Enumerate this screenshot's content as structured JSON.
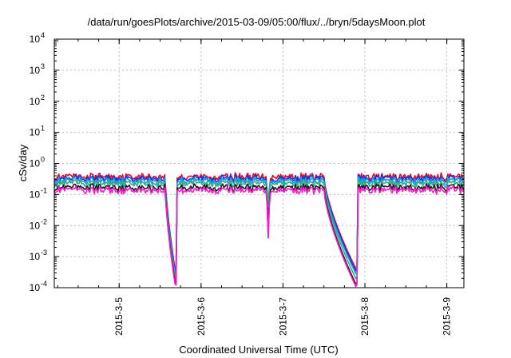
{
  "chart_data": {
    "type": "line",
    "title": "/data/run/goesPlots/archive/2015-03-09/05:00/flux/../bryn/5daysMoon.plot",
    "xlabel": "Coordinated Universal Time (UTC)",
    "ylabel": "cSv/day",
    "yscale": "log",
    "ylim": [
      0.0001,
      10000
    ],
    "yticks": [
      {
        "base": "10",
        "exp": "-4",
        "value": 0.0001
      },
      {
        "base": "10",
        "exp": "-3",
        "value": 0.001
      },
      {
        "base": "10",
        "exp": "-2",
        "value": 0.01
      },
      {
        "base": "10",
        "exp": "-1",
        "value": 0.1
      },
      {
        "base": "10",
        "exp": "0",
        "value": 1
      },
      {
        "base": "10",
        "exp": "1",
        "value": 10
      },
      {
        "base": "10",
        "exp": "2",
        "value": 100
      },
      {
        "base": "10",
        "exp": "3",
        "value": 1000
      },
      {
        "base": "10",
        "exp": "4",
        "value": 10000
      }
    ],
    "xlim": [
      "2015-03-04T05:00",
      "2015-03-09T05:00"
    ],
    "xticks": [
      {
        "label": "2015-3-5",
        "value": "2015-03-05T00:00"
      },
      {
        "label": "2015-3-6",
        "value": "2015-03-06T00:00"
      },
      {
        "label": "2015-3-7",
        "value": "2015-03-07T00:00"
      },
      {
        "label": "2015-3-8",
        "value": "2015-03-08T00:00"
      },
      {
        "label": "2015-3-9",
        "value": "2015-03-09T00:00"
      }
    ],
    "grid": true,
    "series": [
      {
        "color": "#e0102a",
        "baseline": 0.38,
        "min_values": [
          0.00032,
          0.00038
        ]
      },
      {
        "color": "#1e2fd6",
        "baseline": 0.33,
        "min_values": [
          0.00027,
          0.00032
        ]
      },
      {
        "color": "#2a95e8",
        "baseline": 0.28,
        "min_values": [
          0.00022,
          0.00026
        ]
      },
      {
        "color": "#22b48f",
        "baseline": 0.23,
        "min_values": [
          0.00016,
          0.00018
        ]
      },
      {
        "color": "#1a1a1a",
        "baseline": 0.17,
        "min_values": [
          0.00012,
          0.00012
        ]
      },
      {
        "color": "#ff1fcc",
        "baseline": 0.14,
        "min_values": [
          0.0001,
          0.0001
        ]
      }
    ],
    "events": [
      {
        "start": "2015-03-05T13:30",
        "min": "2015-03-05T16:30",
        "end": "2015-03-05T16:45",
        "type": "decay"
      },
      {
        "start": "2015-03-06T19:00",
        "min": "2015-03-06T19:40",
        "end": "2015-03-06T20:00",
        "type": "spike"
      },
      {
        "start": "2015-03-07T12:00",
        "min": "2015-03-07T21:30",
        "end": "2015-03-07T21:45",
        "type": "decay"
      }
    ]
  }
}
